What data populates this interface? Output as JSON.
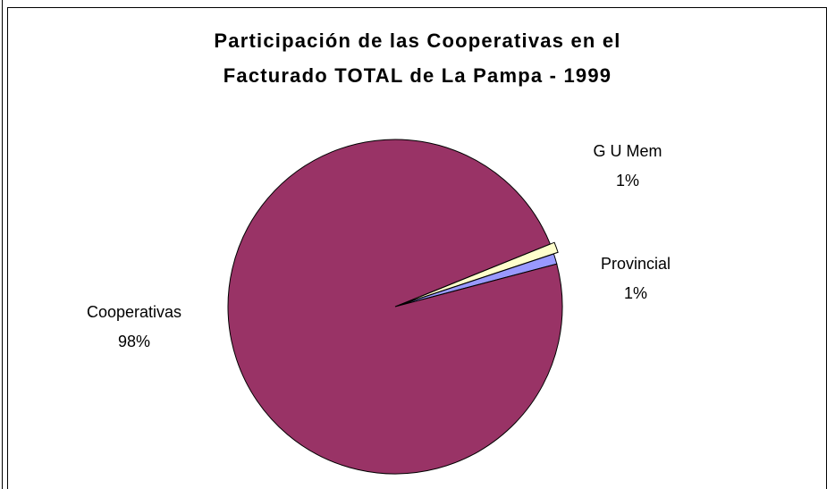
{
  "chart_data": {
    "type": "pie",
    "title": [
      "Participación de las Cooperativas en el",
      "Facturado TOTAL de La Pampa - 1999"
    ],
    "categories": [
      "G U Mem",
      "Provincial",
      "Cooperativas"
    ],
    "values": [
      1,
      1,
      98
    ],
    "value_labels": [
      "1%",
      "1%",
      "98%"
    ],
    "colors": [
      "#ffffcc",
      "#9999ff",
      "#993366"
    ]
  }
}
